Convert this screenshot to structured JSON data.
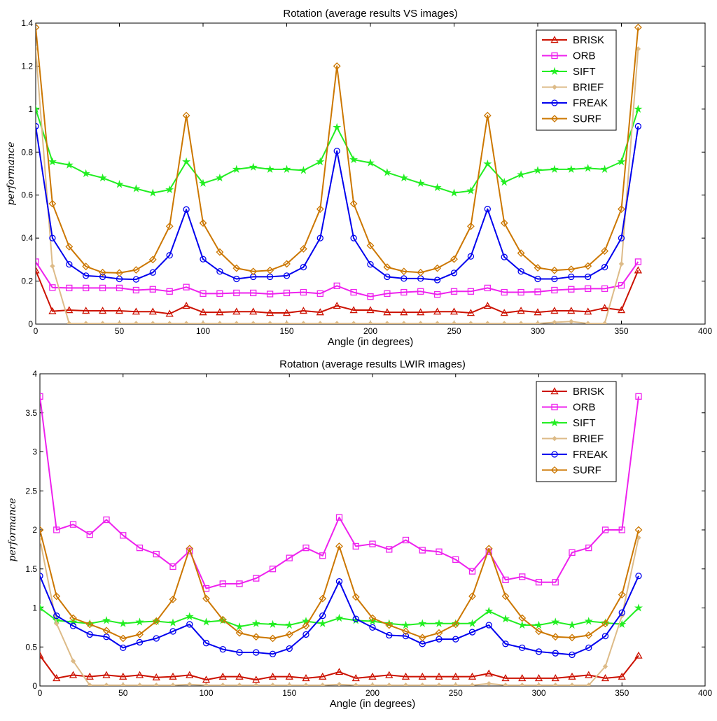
{
  "chart_data": [
    {
      "type": "line",
      "title": "Rotation (average results VS images)",
      "xlabel": "Angle (in degrees)",
      "ylabel": "performance",
      "xlim": [
        0,
        400
      ],
      "ylim": [
        0,
        1.4
      ],
      "xticks": [
        0,
        50,
        100,
        150,
        200,
        250,
        300,
        350,
        400
      ],
      "yticks": [
        0,
        0.2,
        0.4,
        0.6,
        0.8,
        1,
        1.2,
        1.4
      ],
      "legend_position": "top-right",
      "x": [
        0,
        10,
        20,
        30,
        40,
        50,
        60,
        70,
        80,
        90,
        100,
        110,
        120,
        130,
        140,
        150,
        160,
        170,
        180,
        190,
        200,
        210,
        220,
        230,
        240,
        250,
        260,
        270,
        280,
        290,
        300,
        310,
        320,
        330,
        340,
        350,
        360
      ],
      "series": [
        {
          "name": "BRISK",
          "color": "#cc1100",
          "marker": "triangle",
          "values": [
            0.25,
            0.06,
            0.065,
            0.062,
            0.062,
            0.062,
            0.058,
            0.058,
            0.048,
            0.085,
            0.055,
            0.055,
            0.058,
            0.058,
            0.052,
            0.052,
            0.062,
            0.055,
            0.085,
            0.065,
            0.065,
            0.055,
            0.055,
            0.055,
            0.058,
            0.058,
            0.052,
            0.085,
            0.052,
            0.062,
            0.055,
            0.062,
            0.062,
            0.058,
            0.075,
            0.065,
            0.25
          ]
        },
        {
          "name": "ORB",
          "color": "#ee22ee",
          "marker": "square",
          "values": [
            0.29,
            0.17,
            0.168,
            0.168,
            0.168,
            0.168,
            0.158,
            0.162,
            0.152,
            0.172,
            0.142,
            0.142,
            0.145,
            0.145,
            0.14,
            0.145,
            0.148,
            0.142,
            0.178,
            0.148,
            0.128,
            0.142,
            0.148,
            0.152,
            0.138,
            0.152,
            0.152,
            0.168,
            0.148,
            0.148,
            0.15,
            0.158,
            0.162,
            0.165,
            0.165,
            0.18,
            0.29
          ]
        },
        {
          "name": "SIFT",
          "color": "#22ee22",
          "marker": "star",
          "values": [
            1.0,
            0.755,
            0.74,
            0.7,
            0.68,
            0.65,
            0.63,
            0.61,
            0.625,
            0.755,
            0.655,
            0.68,
            0.72,
            0.73,
            0.72,
            0.72,
            0.715,
            0.755,
            0.915,
            0.765,
            0.75,
            0.705,
            0.68,
            0.655,
            0.635,
            0.61,
            0.62,
            0.745,
            0.66,
            0.695,
            0.715,
            0.72,
            0.72,
            0.725,
            0.72,
            0.755,
            1.0
          ]
        },
        {
          "name": "BRIEF",
          "color": "#ddbb88",
          "marker": "diamond-filled",
          "values": [
            1.28,
            0.27,
            0.003,
            0.003,
            0.003,
            0.003,
            0.003,
            0.003,
            0.003,
            0.003,
            0.003,
            0.003,
            0.003,
            0.003,
            0.003,
            0.003,
            0.003,
            0.003,
            0.003,
            0.003,
            0.003,
            0.003,
            0.003,
            0.003,
            0.003,
            0.003,
            0.003,
            0.003,
            0.003,
            0.003,
            0.003,
            0.008,
            0.012,
            0.003,
            0.003,
            0.28,
            1.28
          ]
        },
        {
          "name": "FREAK",
          "color": "#0000ee",
          "marker": "circle",
          "values": [
            0.92,
            0.4,
            0.278,
            0.225,
            0.22,
            0.21,
            0.208,
            0.24,
            0.32,
            0.533,
            0.302,
            0.245,
            0.21,
            0.22,
            0.22,
            0.225,
            0.265,
            0.4,
            0.805,
            0.4,
            0.278,
            0.22,
            0.212,
            0.212,
            0.205,
            0.238,
            0.315,
            0.535,
            0.312,
            0.245,
            0.21,
            0.21,
            0.22,
            0.22,
            0.265,
            0.4,
            0.92
          ]
        },
        {
          "name": "SURF",
          "color": "#cc7700",
          "marker": "diamond",
          "values": [
            1.38,
            0.56,
            0.36,
            0.268,
            0.24,
            0.238,
            0.252,
            0.3,
            0.455,
            0.97,
            0.47,
            0.335,
            0.26,
            0.245,
            0.25,
            0.28,
            0.35,
            0.535,
            1.2,
            0.56,
            0.365,
            0.265,
            0.245,
            0.24,
            0.26,
            0.302,
            0.455,
            0.97,
            0.47,
            0.33,
            0.262,
            0.25,
            0.255,
            0.27,
            0.34,
            0.535,
            1.38
          ]
        }
      ]
    },
    {
      "type": "line",
      "title": "Rotation (average results LWIR images)",
      "xlabel": "Angle (in degrees)",
      "ylabel": "performance",
      "xlim": [
        0,
        400
      ],
      "ylim": [
        0,
        4
      ],
      "xticks": [
        0,
        50,
        100,
        150,
        200,
        250,
        300,
        350,
        400
      ],
      "yticks": [
        0,
        0.5,
        1,
        1.5,
        2,
        2.5,
        3,
        3.5,
        4
      ],
      "legend_position": "top-right",
      "x": [
        0,
        10,
        20,
        30,
        40,
        50,
        60,
        70,
        80,
        90,
        100,
        110,
        120,
        130,
        140,
        150,
        160,
        170,
        180,
        190,
        200,
        210,
        220,
        230,
        240,
        250,
        260,
        270,
        280,
        290,
        300,
        310,
        320,
        330,
        340,
        350,
        360
      ],
      "series": [
        {
          "name": "BRISK",
          "color": "#cc1100",
          "marker": "triangle",
          "values": [
            0.39,
            0.1,
            0.14,
            0.12,
            0.14,
            0.12,
            0.14,
            0.11,
            0.12,
            0.14,
            0.08,
            0.12,
            0.12,
            0.08,
            0.12,
            0.12,
            0.1,
            0.12,
            0.18,
            0.1,
            0.12,
            0.14,
            0.12,
            0.12,
            0.12,
            0.12,
            0.12,
            0.16,
            0.1,
            0.1,
            0.1,
            0.1,
            0.12,
            0.14,
            0.1,
            0.12,
            0.39
          ]
        },
        {
          "name": "ORB",
          "color": "#ee22ee",
          "marker": "square",
          "values": [
            3.71,
            2.0,
            2.07,
            1.94,
            2.13,
            1.93,
            1.77,
            1.69,
            1.53,
            1.73,
            1.25,
            1.31,
            1.31,
            1.38,
            1.5,
            1.64,
            1.77,
            1.67,
            2.16,
            1.79,
            1.82,
            1.75,
            1.87,
            1.74,
            1.72,
            1.62,
            1.47,
            1.72,
            1.36,
            1.4,
            1.33,
            1.33,
            1.71,
            1.77,
            2.0,
            2.0,
            3.71
          ]
        },
        {
          "name": "SIFT",
          "color": "#22ee22",
          "marker": "star",
          "values": [
            1.0,
            0.84,
            0.82,
            0.8,
            0.84,
            0.8,
            0.82,
            0.83,
            0.81,
            0.89,
            0.82,
            0.84,
            0.76,
            0.8,
            0.79,
            0.78,
            0.83,
            0.8,
            0.87,
            0.84,
            0.83,
            0.8,
            0.78,
            0.8,
            0.8,
            0.8,
            0.8,
            0.96,
            0.86,
            0.78,
            0.78,
            0.82,
            0.78,
            0.83,
            0.81,
            0.79,
            1.0
          ]
        },
        {
          "name": "BRIEF",
          "color": "#ddbb88",
          "marker": "diamond-filled",
          "values": [
            1.88,
            0.8,
            0.32,
            0.01,
            0.01,
            0.01,
            0.01,
            0.01,
            0.01,
            0.02,
            0.01,
            0.01,
            0.01,
            0.01,
            0.01,
            0.01,
            0.01,
            0.01,
            0.02,
            0.01,
            0.01,
            0.01,
            0.01,
            0.01,
            0.01,
            0.01,
            0.01,
            0.03,
            0.01,
            0.01,
            0.01,
            0.01,
            0.01,
            0.01,
            0.25,
            0.9,
            1.9
          ]
        },
        {
          "name": "FREAK",
          "color": "#0000ee",
          "marker": "circle",
          "values": [
            1.41,
            0.9,
            0.77,
            0.66,
            0.63,
            0.49,
            0.56,
            0.61,
            0.7,
            0.79,
            0.55,
            0.47,
            0.43,
            0.43,
            0.41,
            0.48,
            0.66,
            0.9,
            1.34,
            0.86,
            0.75,
            0.65,
            0.64,
            0.54,
            0.6,
            0.6,
            0.69,
            0.78,
            0.54,
            0.49,
            0.44,
            0.42,
            0.4,
            0.49,
            0.64,
            0.94,
            1.41
          ]
        },
        {
          "name": "SURF",
          "color": "#cc7700",
          "marker": "diamond",
          "values": [
            2.0,
            1.15,
            0.87,
            0.79,
            0.71,
            0.61,
            0.66,
            0.83,
            1.11,
            1.76,
            1.12,
            0.85,
            0.68,
            0.63,
            0.61,
            0.66,
            0.77,
            1.12,
            1.79,
            1.14,
            0.87,
            0.78,
            0.7,
            0.62,
            0.68,
            0.79,
            1.15,
            1.76,
            1.15,
            0.87,
            0.7,
            0.63,
            0.62,
            0.65,
            0.8,
            1.17,
            2.0
          ]
        }
      ]
    }
  ]
}
